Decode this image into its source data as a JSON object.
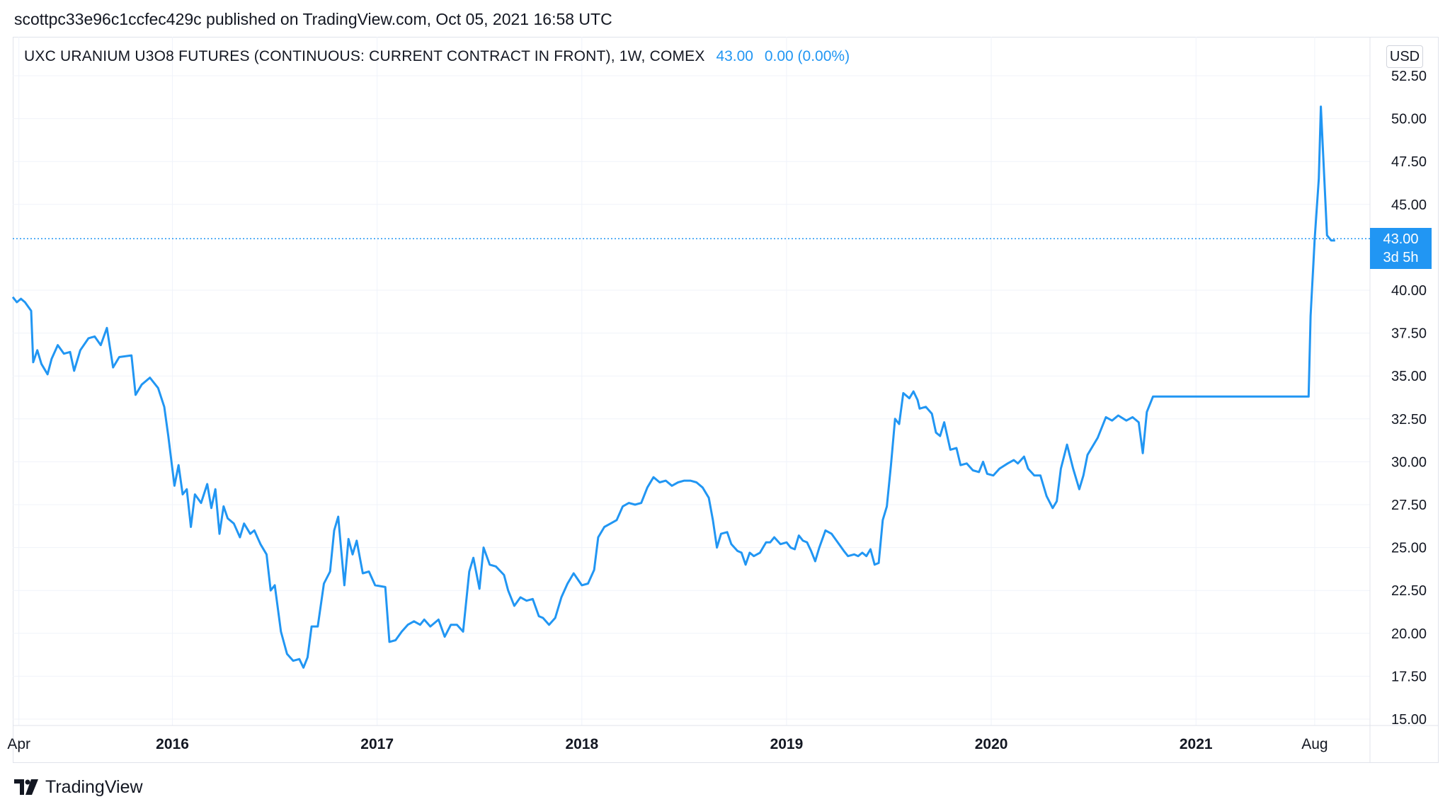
{
  "publisher_line": "scottpc33e96c1ccfec429c published on TradingView.com, Oct 05, 2021 16:58 UTC",
  "header": {
    "symbol": "UXC URANIUM U3O8 FUTURES (CONTINUOUS: CURRENT CONTRACT IN FRONT), 1W, COMEX",
    "last": "43.00",
    "change": "0.00 (0.00%)"
  },
  "currency": "USD",
  "price_tag": {
    "price": "43.00",
    "countdown": "3d 5h"
  },
  "brand": "TradingView",
  "colors": {
    "line": "#2196f3",
    "grid": "#f0f3fa",
    "text": "#131722",
    "accent": "#2196f3"
  },
  "chart_data": {
    "type": "line",
    "ylim": [
      15,
      52.5
    ],
    "yticks": [
      "15.00",
      "17.50",
      "20.00",
      "22.50",
      "25.00",
      "27.50",
      "30.00",
      "32.50",
      "35.00",
      "37.50",
      "40.00",
      "45.00",
      "47.50",
      "50.00",
      "52.50"
    ],
    "x_axis": {
      "start": 2015.22,
      "end": 2021.85,
      "ticks": [
        {
          "label": "Apr",
          "pos": 2015.25,
          "bold": false
        },
        {
          "label": "2016",
          "pos": 2016.0,
          "bold": true
        },
        {
          "label": "2017",
          "pos": 2017.0,
          "bold": true
        },
        {
          "label": "2018",
          "pos": 2018.0,
          "bold": true
        },
        {
          "label": "2019",
          "pos": 2019.0,
          "bold": true
        },
        {
          "label": "2020",
          "pos": 2020.0,
          "bold": true
        },
        {
          "label": "2021",
          "pos": 2021.0,
          "bold": true
        },
        {
          "label": "Aug",
          "pos": 2021.58,
          "bold": false
        }
      ]
    },
    "last_price_line": 43.0,
    "series": [
      {
        "points": [
          [
            2015.22,
            39.6
          ],
          [
            2015.24,
            39.3
          ],
          [
            2015.26,
            39.5
          ],
          [
            2015.28,
            39.3
          ],
          [
            2015.31,
            38.8
          ],
          [
            2015.32,
            35.8
          ],
          [
            2015.34,
            36.5
          ],
          [
            2015.36,
            35.7
          ],
          [
            2015.39,
            35.1
          ],
          [
            2015.41,
            36.0
          ],
          [
            2015.44,
            36.8
          ],
          [
            2015.47,
            36.3
          ],
          [
            2015.5,
            36.4
          ],
          [
            2015.52,
            35.3
          ],
          [
            2015.55,
            36.5
          ],
          [
            2015.59,
            37.2
          ],
          [
            2015.62,
            37.3
          ],
          [
            2015.65,
            36.8
          ],
          [
            2015.68,
            37.8
          ],
          [
            2015.71,
            35.5
          ],
          [
            2015.74,
            36.1
          ],
          [
            2015.8,
            36.2
          ],
          [
            2015.82,
            33.9
          ],
          [
            2015.85,
            34.5
          ],
          [
            2015.89,
            34.9
          ],
          [
            2015.93,
            34.3
          ],
          [
            2015.96,
            33.2
          ],
          [
            2015.98,
            31.5
          ],
          [
            2016.01,
            28.6
          ],
          [
            2016.03,
            29.8
          ],
          [
            2016.05,
            28.1
          ],
          [
            2016.07,
            28.4
          ],
          [
            2016.09,
            26.2
          ],
          [
            2016.11,
            28.1
          ],
          [
            2016.14,
            27.6
          ],
          [
            2016.17,
            28.7
          ],
          [
            2016.19,
            27.3
          ],
          [
            2016.21,
            28.4
          ],
          [
            2016.23,
            25.8
          ],
          [
            2016.25,
            27.4
          ],
          [
            2016.27,
            26.7
          ],
          [
            2016.3,
            26.4
          ],
          [
            2016.33,
            25.6
          ],
          [
            2016.35,
            26.4
          ],
          [
            2016.38,
            25.8
          ],
          [
            2016.4,
            26.0
          ],
          [
            2016.43,
            25.2
          ],
          [
            2016.46,
            24.6
          ],
          [
            2016.48,
            22.5
          ],
          [
            2016.5,
            22.8
          ],
          [
            2016.53,
            20.1
          ],
          [
            2016.56,
            18.8
          ],
          [
            2016.59,
            18.4
          ],
          [
            2016.62,
            18.5
          ],
          [
            2016.64,
            18.0
          ],
          [
            2016.66,
            18.6
          ],
          [
            2016.68,
            20.4
          ],
          [
            2016.71,
            20.4
          ],
          [
            2016.74,
            22.9
          ],
          [
            2016.77,
            23.6
          ],
          [
            2016.79,
            26.0
          ],
          [
            2016.81,
            26.8
          ],
          [
            2016.84,
            22.8
          ],
          [
            2016.86,
            25.5
          ],
          [
            2016.88,
            24.6
          ],
          [
            2016.9,
            25.4
          ],
          [
            2016.93,
            23.5
          ],
          [
            2016.96,
            23.6
          ],
          [
            2016.99,
            22.8
          ],
          [
            2017.04,
            22.7
          ],
          [
            2017.06,
            19.5
          ],
          [
            2017.09,
            19.6
          ],
          [
            2017.12,
            20.1
          ],
          [
            2017.15,
            20.5
          ],
          [
            2017.18,
            20.7
          ],
          [
            2017.21,
            20.5
          ],
          [
            2017.23,
            20.8
          ],
          [
            2017.26,
            20.4
          ],
          [
            2017.3,
            20.8
          ],
          [
            2017.33,
            19.8
          ],
          [
            2017.36,
            20.5
          ],
          [
            2017.39,
            20.5
          ],
          [
            2017.42,
            20.1
          ],
          [
            2017.45,
            23.6
          ],
          [
            2017.47,
            24.4
          ],
          [
            2017.5,
            22.6
          ],
          [
            2017.52,
            25.0
          ],
          [
            2017.55,
            24.0
          ],
          [
            2017.58,
            23.9
          ],
          [
            2017.62,
            23.4
          ],
          [
            2017.64,
            22.5
          ],
          [
            2017.67,
            21.6
          ],
          [
            2017.7,
            22.1
          ],
          [
            2017.73,
            21.9
          ],
          [
            2017.76,
            22.0
          ],
          [
            2017.79,
            21.0
          ],
          [
            2017.81,
            20.9
          ],
          [
            2017.84,
            20.5
          ],
          [
            2017.87,
            20.9
          ],
          [
            2017.9,
            22.1
          ],
          [
            2017.93,
            22.9
          ],
          [
            2017.96,
            23.5
          ],
          [
            2018.0,
            22.8
          ],
          [
            2018.03,
            22.9
          ],
          [
            2018.06,
            23.7
          ],
          [
            2018.08,
            25.6
          ],
          [
            2018.11,
            26.2
          ],
          [
            2018.14,
            26.4
          ],
          [
            2018.17,
            26.6
          ],
          [
            2018.2,
            27.4
          ],
          [
            2018.23,
            27.6
          ],
          [
            2018.26,
            27.5
          ],
          [
            2018.29,
            27.6
          ],
          [
            2018.32,
            28.5
          ],
          [
            2018.35,
            29.1
          ],
          [
            2018.38,
            28.8
          ],
          [
            2018.41,
            28.9
          ],
          [
            2018.44,
            28.6
          ],
          [
            2018.47,
            28.8
          ],
          [
            2018.5,
            28.9
          ],
          [
            2018.53,
            28.9
          ],
          [
            2018.56,
            28.8
          ],
          [
            2018.59,
            28.5
          ],
          [
            2018.62,
            27.9
          ],
          [
            2018.64,
            26.6
          ],
          [
            2018.66,
            25.0
          ],
          [
            2018.68,
            25.8
          ],
          [
            2018.71,
            25.9
          ],
          [
            2018.73,
            25.2
          ],
          [
            2018.76,
            24.8
          ],
          [
            2018.78,
            24.7
          ],
          [
            2018.8,
            24.0
          ],
          [
            2018.82,
            24.7
          ],
          [
            2018.84,
            24.5
          ],
          [
            2018.87,
            24.7
          ],
          [
            2018.9,
            25.3
          ],
          [
            2018.92,
            25.3
          ],
          [
            2018.94,
            25.6
          ],
          [
            2018.97,
            25.2
          ],
          [
            2019.0,
            25.3
          ],
          [
            2019.02,
            25.0
          ],
          [
            2019.04,
            24.9
          ],
          [
            2019.06,
            25.7
          ],
          [
            2019.08,
            25.4
          ],
          [
            2019.1,
            25.3
          ],
          [
            2019.12,
            24.8
          ],
          [
            2019.14,
            24.2
          ],
          [
            2019.16,
            25.0
          ],
          [
            2019.19,
            26.0
          ],
          [
            2019.22,
            25.8
          ],
          [
            2019.25,
            25.3
          ],
          [
            2019.28,
            24.8
          ],
          [
            2019.3,
            24.5
          ],
          [
            2019.33,
            24.6
          ],
          [
            2019.35,
            24.5
          ],
          [
            2019.37,
            24.7
          ],
          [
            2019.39,
            24.5
          ],
          [
            2019.41,
            24.9
          ],
          [
            2019.43,
            24.0
          ],
          [
            2019.45,
            24.1
          ],
          [
            2019.47,
            26.6
          ],
          [
            2019.49,
            27.4
          ],
          [
            2019.51,
            29.8
          ],
          [
            2019.53,
            32.5
          ],
          [
            2019.55,
            32.2
          ],
          [
            2019.57,
            34.0
          ],
          [
            2019.6,
            33.7
          ],
          [
            2019.62,
            34.1
          ],
          [
            2019.64,
            33.6
          ],
          [
            2019.65,
            33.1
          ],
          [
            2019.68,
            33.2
          ],
          [
            2019.71,
            32.8
          ],
          [
            2019.73,
            31.7
          ],
          [
            2019.75,
            31.5
          ],
          [
            2019.77,
            32.3
          ],
          [
            2019.8,
            30.7
          ],
          [
            2019.83,
            30.8
          ],
          [
            2019.85,
            29.8
          ],
          [
            2019.88,
            29.9
          ],
          [
            2019.91,
            29.5
          ],
          [
            2019.94,
            29.4
          ],
          [
            2019.96,
            30.0
          ],
          [
            2019.98,
            29.3
          ],
          [
            2020.01,
            29.2
          ],
          [
            2020.04,
            29.6
          ],
          [
            2020.08,
            29.9
          ],
          [
            2020.11,
            30.1
          ],
          [
            2020.13,
            29.9
          ],
          [
            2020.16,
            30.3
          ],
          [
            2020.18,
            29.6
          ],
          [
            2020.21,
            29.2
          ],
          [
            2020.24,
            29.2
          ],
          [
            2020.27,
            28.0
          ],
          [
            2020.3,
            27.3
          ],
          [
            2020.32,
            27.7
          ],
          [
            2020.34,
            29.6
          ],
          [
            2020.37,
            31.0
          ],
          [
            2020.4,
            29.6
          ],
          [
            2020.43,
            28.4
          ],
          [
            2020.45,
            29.2
          ],
          [
            2020.47,
            30.4
          ],
          [
            2020.52,
            31.4
          ],
          [
            2020.56,
            32.6
          ],
          [
            2020.59,
            32.4
          ],
          [
            2020.62,
            32.7
          ],
          [
            2020.66,
            32.4
          ],
          [
            2020.69,
            32.6
          ],
          [
            2020.72,
            32.3
          ],
          [
            2020.74,
            30.5
          ],
          [
            2020.76,
            32.9
          ],
          [
            2020.79,
            33.8
          ],
          [
            2020.8,
            33.8
          ],
          [
            2021.55,
            33.8
          ],
          [
            2021.56,
            38.5
          ],
          [
            2021.58,
            43.0
          ],
          [
            2021.6,
            46.5
          ],
          [
            2021.61,
            50.7
          ],
          [
            2021.64,
            43.2
          ],
          [
            2021.66,
            42.9
          ],
          [
            2021.68,
            42.9
          ]
        ]
      }
    ]
  }
}
